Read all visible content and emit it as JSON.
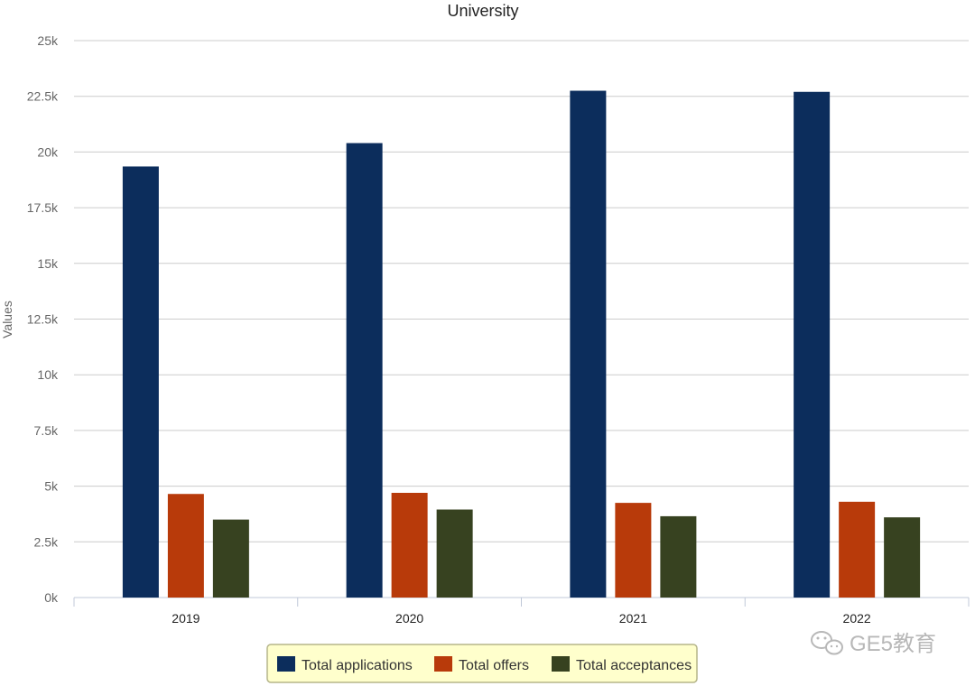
{
  "chart_data": {
    "type": "bar",
    "title": "University",
    "ylabel": "Values",
    "xlabel": "",
    "categories": [
      "2019",
      "2020",
      "2021",
      "2022"
    ],
    "series": [
      {
        "name": "Total applications",
        "color": "#0c2d5c",
        "values": [
          19350,
          20400,
          22750,
          22700
        ]
      },
      {
        "name": "Total offers",
        "color": "#b83a0a",
        "values": [
          4650,
          4700,
          4250,
          4300
        ]
      },
      {
        "name": "Total acceptances",
        "color": "#374220",
        "values": [
          3500,
          3950,
          3650,
          3600
        ]
      }
    ],
    "ylim": [
      0,
      25000
    ],
    "yticks": [
      "0k",
      "2.5k",
      "5k",
      "7.5k",
      "10k",
      "12.5k",
      "15k",
      "17.5k",
      "20k",
      "22.5k",
      "25k"
    ],
    "grid": true,
    "legend_position": "bottom-center",
    "legend_background": "#ffffcc"
  },
  "watermark": {
    "text": "GE5教育"
  }
}
